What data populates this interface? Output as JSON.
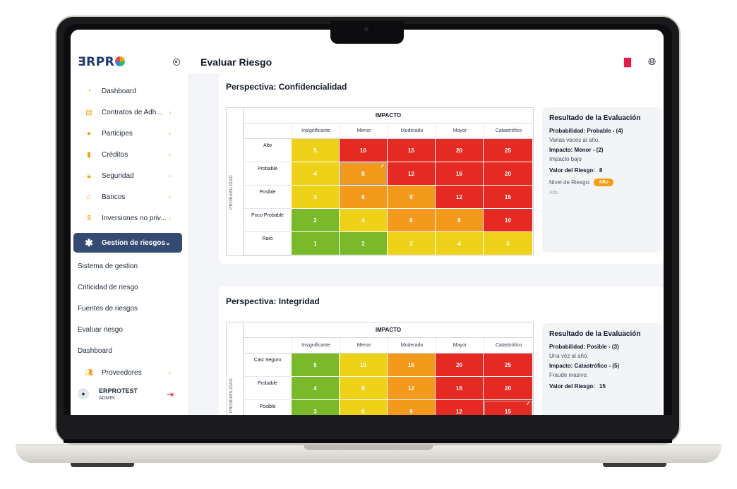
{
  "app": {
    "logo_part1": "ƎRPR",
    "page_title": "Evaluar Riesgo"
  },
  "sidebar": {
    "items": [
      {
        "label": "Dashboard",
        "icon": "pie-chart-icon",
        "chevron": false,
        "color": "#f59e0b"
      },
      {
        "label": "Contratos de Adh...",
        "icon": "document-icon",
        "chevron": true,
        "color": "#f59e0b"
      },
      {
        "label": "Participes",
        "icon": "user-icon",
        "chevron": true,
        "color": "#f59e0b"
      },
      {
        "label": "Créditos",
        "icon": "file-icon",
        "chevron": true,
        "color": "#f59e0b"
      },
      {
        "label": "Seguridad",
        "icon": "lock-icon",
        "chevron": true,
        "color": "#f59e0b"
      },
      {
        "label": "Bancos",
        "icon": "bank-icon",
        "chevron": true,
        "color": "#f59e0b"
      },
      {
        "label": "Inversiones no priv...",
        "icon": "dollar-icon",
        "chevron": true,
        "color": "#f59e0b"
      }
    ],
    "active": {
      "label": "Gestion de riesgos",
      "icon": "asterisk-icon"
    },
    "sub_items": [
      "Sistema de gestion",
      "Criticidad de riesgo",
      "Fuentes de riesgos",
      "Evaluar riesgo",
      "Dashboard"
    ],
    "providers": {
      "label": "Proveedores",
      "icon": "users-icon"
    },
    "user": {
      "name": "ERPROTEST",
      "role": "ADMIN"
    }
  },
  "matrix_common": {
    "impact_label": "IMPACTO",
    "prob_label": "PROBABILIDAD"
  },
  "perspectives": [
    {
      "title": "Perspectiva: Confidencialidad",
      "columns": [
        "Insignificante",
        "Menor",
        "Moderado",
        "Mayor",
        "Catastrófico"
      ],
      "rows": [
        "Alto",
        "Probable",
        "Posible",
        "Poco Probable",
        "Raro"
      ],
      "values": [
        [
          5,
          10,
          15,
          20,
          25
        ],
        [
          4,
          8,
          12,
          16,
          20
        ],
        [
          3,
          6,
          9,
          12,
          15
        ],
        [
          2,
          4,
          6,
          8,
          10
        ],
        [
          1,
          2,
          3,
          4,
          5
        ]
      ],
      "colors": [
        [
          "#eed21a",
          "#e52a24",
          "#e52a24",
          "#e52a24",
          "#e52a24"
        ],
        [
          "#eed21a",
          "#f39a1c",
          "#e52a24",
          "#e52a24",
          "#e52a24"
        ],
        [
          "#eed21a",
          "#f39a1c",
          "#f39a1c",
          "#e52a24",
          "#e52a24"
        ],
        [
          "#79b92a",
          "#eed21a",
          "#f39a1c",
          "#f39a1c",
          "#e52a24"
        ],
        [
          "#79b92a",
          "#79b92a",
          "#eed21a",
          "#eed21a",
          "#eed21a"
        ]
      ],
      "selected": [
        1,
        1
      ],
      "result": {
        "title": "Resultado de la Evaluación",
        "probability": "Probabilidad: Probable - (4)",
        "probability_desc": "Varias veces al año.",
        "impact": "Impacto: Menor - (2)",
        "impact_desc": "Impacto bajo",
        "risk_label": "Valor del Riesgo:",
        "risk_value": "8",
        "level_label": "Nivel de Riesgo:",
        "level_badge": "Alto",
        "level_note": "Alto"
      }
    },
    {
      "title": "Perspectiva: Integridad",
      "columns": [
        "Insignificante",
        "Menor",
        "Moderado",
        "Mayor",
        "Catastrófico"
      ],
      "rows": [
        "Casi Seguro",
        "Probable",
        "Posible"
      ],
      "values": [
        [
          5,
          10,
          15,
          20,
          25
        ],
        [
          4,
          8,
          12,
          16,
          20
        ],
        [
          3,
          6,
          9,
          12,
          15
        ]
      ],
      "colors": [
        [
          "#79b92a",
          "#eed21a",
          "#f39a1c",
          "#e52a24",
          "#e52a24"
        ],
        [
          "#79b92a",
          "#eed21a",
          "#f39a1c",
          "#e52a24",
          "#e52a24"
        ],
        [
          "#79b92a",
          "#eed21a",
          "#f39a1c",
          "#e52a24",
          "#e52a24"
        ]
      ],
      "selected": [
        2,
        4
      ],
      "result": {
        "title": "Resultado de la Evaluación",
        "probability": "Probabilidad: Posible - (3)",
        "probability_desc": "Una vez al año.",
        "impact": "Impacto: Catastrófico - (5)",
        "impact_desc": "Fraude masivo.",
        "risk_label": "Valor del Riesgo:",
        "risk_value": "15"
      }
    }
  ]
}
